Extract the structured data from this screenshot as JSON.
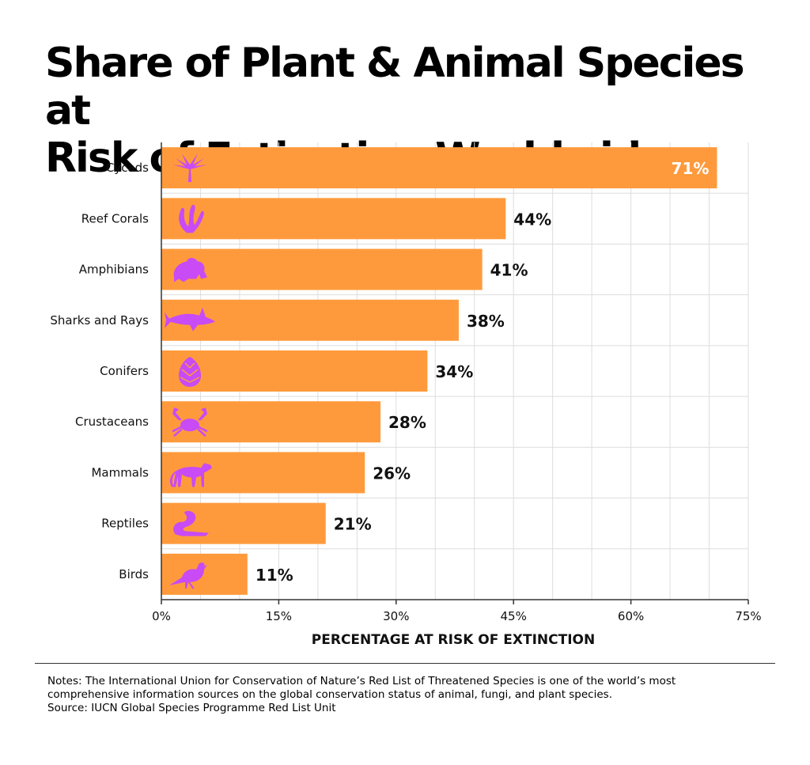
{
  "title_lines": [
    "Share of Plant & Animal Species at",
    "Risk of Extinction Worldwide"
  ],
  "colors": {
    "bar": "#FF9A3C",
    "icon": "#C84BF5",
    "grid": "#dddddd",
    "axis": "#333333",
    "inside_label": "#ffffff",
    "outside_label": "#111111"
  },
  "chart_data": {
    "type": "bar",
    "orientation": "horizontal",
    "categories": [
      "Cycads",
      "Reef Corals",
      "Amphibians",
      "Sharks and Rays",
      "Conifers",
      "Crustaceans",
      "Mammals",
      "Reptiles",
      "Birds"
    ],
    "values": [
      71,
      44,
      41,
      38,
      34,
      28,
      26,
      21,
      11
    ],
    "data_labels": [
      "71%",
      "44%",
      "41%",
      "38%",
      "34%",
      "28%",
      "26%",
      "21%",
      "11%"
    ],
    "icons": [
      "cycad-icon",
      "coral-icon",
      "frog-icon",
      "shark-icon",
      "pinecone-icon",
      "crab-icon",
      "cheetah-icon",
      "snake-icon",
      "bird-icon"
    ],
    "xlabel": "PERCENTAGE AT RISK OF EXTINCTION",
    "xlim": [
      0,
      75
    ],
    "xticks": [
      0,
      15,
      30,
      45,
      60,
      75
    ],
    "xtick_labels": [
      "0%",
      "15%",
      "30%",
      "45%",
      "60%",
      "75%"
    ],
    "grid": true
  },
  "notes": {
    "notes_text": "Notes: The International Union for Conservation of Nature’s Red List of Threatened Species is one of the world’s most comprehensive information sources on the global conservation status of animal, fungi, and plant species.",
    "source_text": "Source: IUCN Global Species Programme Red List Unit"
  }
}
